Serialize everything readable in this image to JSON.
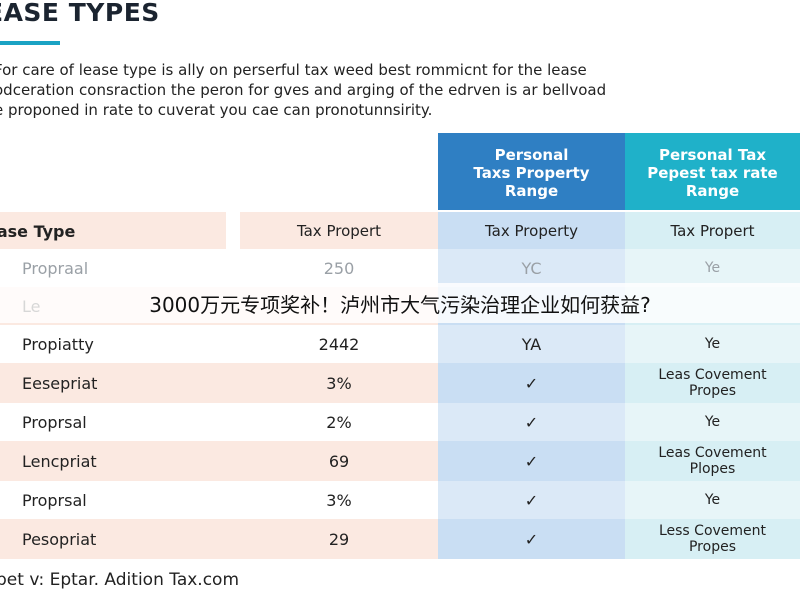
{
  "title": "EASE TYPES",
  "intro": [
    "For care of lease type is ally on perserful tax weed best rommicnt for the lease",
    "odceration consraction the peron for gves and arging of the edrven is ar bellvoad",
    "e proponed in rate to cuverat you cae can pronotunnsirity."
  ],
  "table": {
    "headers": [
      "Personal\nTaxs Property\nRange",
      "Personal Tax\nPepest tax rate\nRange"
    ],
    "subheader": [
      "ease Type",
      "Tax Propert",
      "Tax Property",
      "Tax Propert"
    ],
    "rows": [
      {
        "c1": "Propraal",
        "c2": "250",
        "c3": "YC",
        "c4": "Ye"
      },
      {
        "c1": "Le",
        "c2": "",
        "c3": "",
        "c4": ""
      },
      {
        "c1": "Propiatty",
        "c2": "2442",
        "c3": "YA",
        "c4": "Ye"
      },
      {
        "c1": "Eesepriat",
        "c2": "3%",
        "c3": "✓",
        "c4": "Leas Covement\nPropes"
      },
      {
        "c1": "Proprsal",
        "c2": "2%",
        "c3": "✓",
        "c4": "Ye"
      },
      {
        "c1": "Lencpriat",
        "c2": "69",
        "c3": "✓",
        "c4": "Leas Covement\nPlopes"
      },
      {
        "c1": "Proprsal",
        "c2": "3%",
        "c3": "✓",
        "c4": "Ye"
      },
      {
        "c1": "Pesopriat",
        "c2": "29",
        "c3": "✓",
        "c4": "Less Covement\nPropes"
      }
    ]
  },
  "overlay_caption": "3000万元专项奖补！泸州市大气污染治理企业如何获益?",
  "footer": "pet v: Eptar. Adition Tax.com",
  "colors": {
    "header_blue": "#2f7fc3",
    "header_teal": "#1fb1c9",
    "accent_underline": "#1aa3c4",
    "row_peach": "#fbe9e1"
  }
}
